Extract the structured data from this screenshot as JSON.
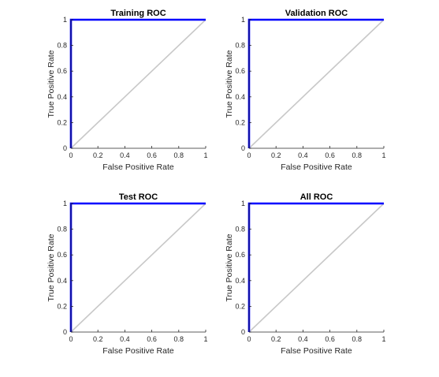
{
  "colors": {
    "roc_line": "#0000ff",
    "diagonal": "#c8c8c8",
    "axis": "#262626",
    "background": "#ffffff"
  },
  "chart_data": [
    {
      "type": "line",
      "title": "Training ROC",
      "xlabel": "False Positive Rate",
      "ylabel": "True Positive Rate",
      "xlim": [
        0,
        1
      ],
      "ylim": [
        0,
        1
      ],
      "xticks": [
        "0",
        "0.2",
        "0.4",
        "0.6",
        "0.8",
        "1"
      ],
      "yticks": [
        "0",
        "0.2",
        "0.4",
        "0.6",
        "0.8",
        "1"
      ],
      "grid": false,
      "series": [
        {
          "x": [
            0,
            0,
            1
          ],
          "y": [
            0,
            1,
            1
          ],
          "color": "#0000ff"
        },
        {
          "x": [
            0,
            1
          ],
          "y": [
            0,
            1
          ],
          "color": "#c8c8c8"
        }
      ]
    },
    {
      "type": "line",
      "title": "Validation ROC",
      "xlabel": "False Positive Rate",
      "ylabel": "True Positive Rate",
      "xlim": [
        0,
        1
      ],
      "ylim": [
        0,
        1
      ],
      "xticks": [
        "0",
        "0.2",
        "0.4",
        "0.6",
        "0.8",
        "1"
      ],
      "yticks": [
        "0",
        "0.2",
        "0.4",
        "0.6",
        "0.8",
        "1"
      ],
      "grid": false,
      "series": [
        {
          "x": [
            0,
            0,
            1
          ],
          "y": [
            0,
            1,
            1
          ],
          "color": "#0000ff"
        },
        {
          "x": [
            0,
            1
          ],
          "y": [
            0,
            1
          ],
          "color": "#c8c8c8"
        }
      ]
    },
    {
      "type": "line",
      "title": "Test ROC",
      "xlabel": "False Positive Rate",
      "ylabel": "True Positive Rate",
      "xlim": [
        0,
        1
      ],
      "ylim": [
        0,
        1
      ],
      "xticks": [
        "0",
        "0.2",
        "0.4",
        "0.6",
        "0.8",
        "1"
      ],
      "yticks": [
        "0",
        "0.2",
        "0.4",
        "0.6",
        "0.8",
        "1"
      ],
      "grid": false,
      "series": [
        {
          "x": [
            0,
            0,
            1
          ],
          "y": [
            0,
            1,
            1
          ],
          "color": "#0000ff"
        },
        {
          "x": [
            0,
            1
          ],
          "y": [
            0,
            1
          ],
          "color": "#c8c8c8"
        }
      ]
    },
    {
      "type": "line",
      "title": "All ROC",
      "xlabel": "False Positive Rate",
      "ylabel": "True Positive Rate",
      "xlim": [
        0,
        1
      ],
      "ylim": [
        0,
        1
      ],
      "xticks": [
        "0",
        "0.2",
        "0.4",
        "0.6",
        "0.8",
        "1"
      ],
      "yticks": [
        "0",
        "0.2",
        "0.4",
        "0.6",
        "0.8",
        "1"
      ],
      "grid": false,
      "series": [
        {
          "x": [
            0,
            0,
            1
          ],
          "y": [
            0,
            1,
            1
          ],
          "color": "#0000ff"
        },
        {
          "x": [
            0,
            1
          ],
          "y": [
            0,
            1
          ],
          "color": "#c8c8c8"
        }
      ]
    }
  ]
}
